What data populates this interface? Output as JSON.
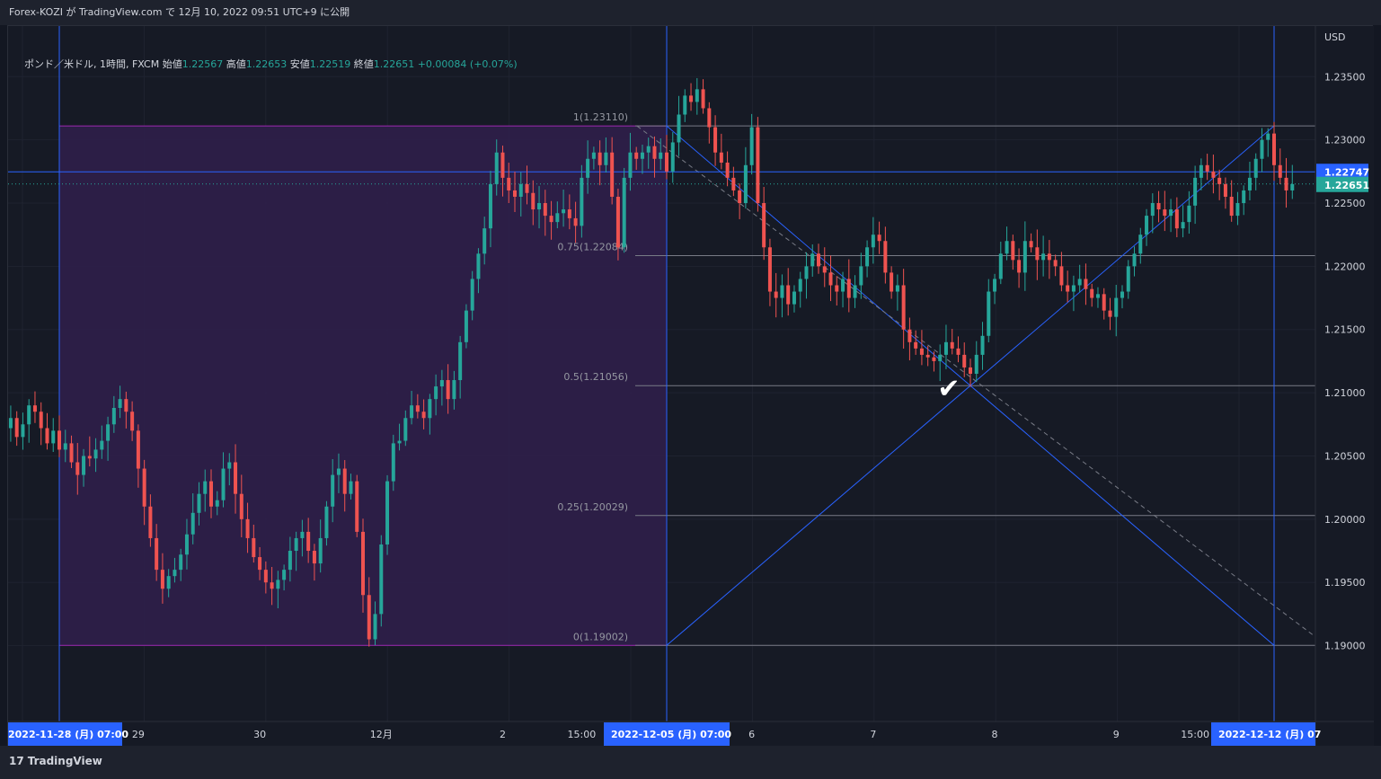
{
  "header": {
    "published_by": "Forex-KOZI が TradingView.com で 12月 10, 2022 09:51 UTC+9 に公開"
  },
  "legend": {
    "symbol": "ポンド／米ドル, 1時間, FXCM",
    "open_label": "始値",
    "open": "1.22567",
    "high_label": "高値",
    "high": "1.22653",
    "low_label": "安値",
    "low": "1.22519",
    "close_label": "終値",
    "close": "1.22651",
    "change": "+0.00084 (+0.07%)"
  },
  "footer": {
    "brand": "TradingView",
    "brand_icon": "17"
  },
  "colors": {
    "up": "#26a69a",
    "down": "#ef5350",
    "blue": "#2962ff",
    "purple_fill": "#2f1f4a",
    "fib_line": "#787b86"
  },
  "chart_data": {
    "type": "candlestick",
    "symbol": "GBP/USD",
    "interval": "1時間",
    "source": "FXCM",
    "currency": "USD",
    "y_ticks": [
      "1.23500",
      "1.23000",
      "1.22500",
      "1.22000",
      "1.21500",
      "1.21000",
      "1.20500",
      "1.20000",
      "1.19500",
      "1.19000"
    ],
    "ylim": [
      1.184,
      1.239
    ],
    "x_ticks": [
      {
        "label": "29",
        "bar": 21
      },
      {
        "label": "30",
        "bar": 41
      },
      {
        "label": "12月",
        "bar": 61
      },
      {
        "label": "2",
        "bar": 81
      },
      {
        "label": "15:00",
        "bar": 94
      },
      {
        "label": "6",
        "bar": 122
      },
      {
        "label": "7",
        "bar": 142
      },
      {
        "label": "8",
        "bar": 162
      },
      {
        "label": "9",
        "bar": 182
      },
      {
        "label": "15:00",
        "bar": 195
      }
    ],
    "x_highlights": [
      {
        "label": "2022-11-28 (月)  07:00",
        "bar": 8
      },
      {
        "label": "2022-12-05 (月)  07:00",
        "bar": 108
      },
      {
        "label": "2022-12-12 (月)  07",
        "bar": 208
      }
    ],
    "price_labels": {
      "crosshair": "1.22747",
      "last": "1.22651"
    },
    "crosshair_price": 1.22747,
    "last_price": 1.22651,
    "fib_levels": [
      {
        "label": "1(1.23110)",
        "value": 1.2311
      },
      {
        "label": "0.75(1.22084)",
        "value": 1.22084
      },
      {
        "label": "0.5(1.21056)",
        "value": 1.21056
      },
      {
        "label": "0.25(1.20029)",
        "value": 1.20029
      },
      {
        "label": "0(1.19002)",
        "value": 1.19002
      }
    ],
    "checkmark_label": "✔",
    "anchor_points": [
      {
        "name": "range-left",
        "bar": 8
      },
      {
        "name": "range-right",
        "bar": 108
      },
      {
        "name": "target-right",
        "bar": 208
      },
      {
        "name": "range-high",
        "price": 1.2311
      },
      {
        "name": "range-low",
        "price": 1.19002
      }
    ],
    "closes": [
      1.208,
      1.2065,
      1.2075,
      1.209,
      1.2085,
      1.2072,
      1.206,
      1.207,
      1.2055,
      1.206,
      1.2045,
      1.2035,
      1.205,
      1.2048,
      1.2055,
      1.2062,
      1.2075,
      1.2088,
      1.2095,
      1.2085,
      1.207,
      1.204,
      1.201,
      1.1985,
      1.196,
      1.1945,
      1.1955,
      1.196,
      1.1972,
      1.1988,
      1.2005,
      1.202,
      1.203,
      1.201,
      1.2015,
      1.204,
      1.2045,
      1.202,
      1.2,
      1.1985,
      1.197,
      1.196,
      1.195,
      1.1945,
      1.1952,
      1.196,
      1.1975,
      1.1985,
      1.199,
      1.1975,
      1.1965,
      1.1985,
      1.201,
      1.2035,
      1.204,
      1.202,
      1.203,
      1.199,
      1.194,
      1.1905,
      1.1925,
      1.198,
      1.203,
      1.206,
      1.2062,
      1.208,
      1.209,
      1.2085,
      1.208,
      1.2095,
      1.2105,
      1.211,
      1.2095,
      1.211,
      1.214,
      1.2165,
      1.219,
      1.221,
      1.223,
      1.2265,
      1.229,
      1.227,
      1.226,
      1.2255,
      1.2265,
      1.2258,
      1.2245,
      1.225,
      1.224,
      1.2235,
      1.2242,
      1.2245,
      1.2238,
      1.2232,
      1.227,
      1.2285,
      1.229,
      1.228,
      1.229,
      1.2255,
      1.2215,
      1.227,
      1.229,
      1.2285,
      1.229,
      1.2295,
      1.2285,
      1.229,
      1.2275,
      1.2298,
      1.232,
      1.2335,
      1.233,
      1.234,
      1.2325,
      1.231,
      1.229,
      1.2282,
      1.227,
      1.226,
      1.225,
      1.228,
      1.231,
      1.225,
      1.2215,
      1.218,
      1.2175,
      1.2185,
      1.217,
      1.218,
      1.219,
      1.22,
      1.221,
      1.22,
      1.2195,
      1.2185,
      1.218,
      1.219,
      1.2175,
      1.2185,
      1.22,
      1.2215,
      1.2225,
      1.222,
      1.2195,
      1.218,
      1.2185,
      1.215,
      1.214,
      1.2135,
      1.213,
      1.2128,
      1.2125,
      1.213,
      1.214,
      1.2135,
      1.213,
      1.212,
      1.2115,
      1.213,
      1.2145,
      1.218,
      1.219,
      1.221,
      1.222,
      1.2205,
      1.2195,
      1.222,
      1.2215,
      1.2205,
      1.221,
      1.2205,
      1.22,
      1.2185,
      1.218,
      1.2185,
      1.219,
      1.2182,
      1.2175,
      1.2178,
      1.2165,
      1.216,
      1.2175,
      1.218,
      1.22,
      1.221,
      1.2225,
      1.224,
      1.225,
      1.2245,
      1.224,
      1.2245,
      1.223,
      1.2235,
      1.2248,
      1.227,
      1.228,
      1.2275,
      1.227,
      1.2265,
      1.2255,
      1.224,
      1.225,
      1.226,
      1.227,
      1.2285,
      1.23,
      1.2305,
      1.228,
      1.227,
      1.226,
      1.2265
    ]
  }
}
